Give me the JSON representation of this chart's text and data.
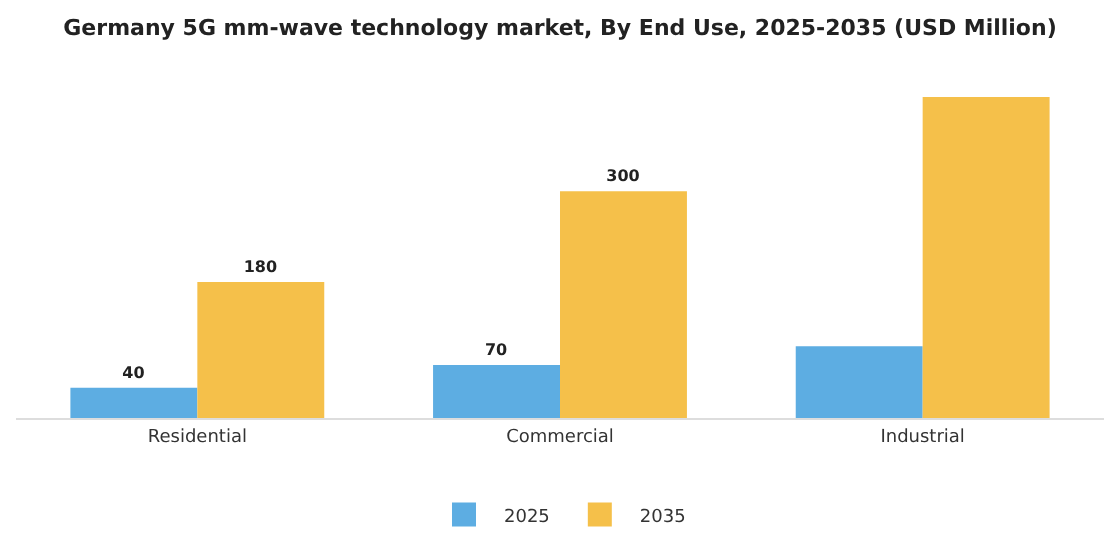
{
  "chart_data": {
    "type": "bar",
    "title": "Germany 5G mm-wave technology market, By End Use, 2025-2035 (USD Million)",
    "categories": [
      "Residential",
      "Commercial",
      "Industrial"
    ],
    "series": [
      {
        "name": "2025",
        "color": "#5dade2",
        "values": [
          40,
          70,
          95
        ],
        "value_labels": [
          "40",
          "70",
          null
        ]
      },
      {
        "name": "2035",
        "color": "#f5c04a",
        "values": [
          180,
          300,
          425
        ],
        "value_labels": [
          "180",
          "300",
          null
        ]
      }
    ],
    "legend": "bottom"
  }
}
